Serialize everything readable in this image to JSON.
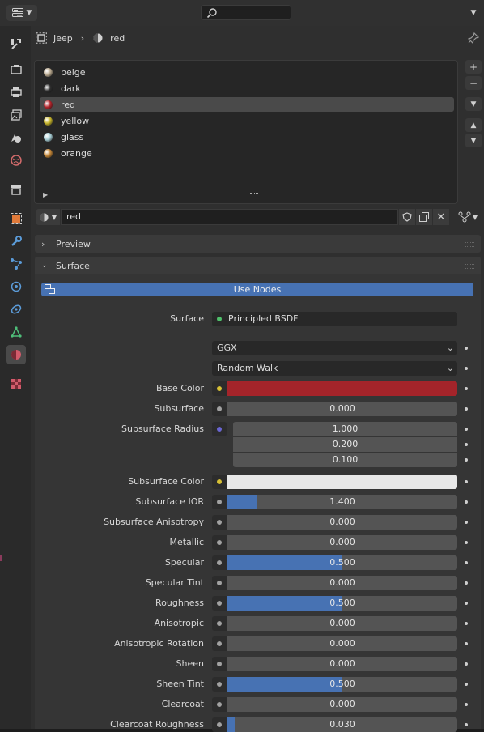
{
  "header": {
    "editor_icon": "properties-editor-icon",
    "search_placeholder": ""
  },
  "tabs": [
    {
      "name": "tool-tab",
      "icon": "tool-icon"
    },
    {
      "name": "render-tab",
      "icon": "camera-back-icon"
    },
    {
      "name": "output-tab",
      "icon": "printer-icon"
    },
    {
      "name": "view-layer-tab",
      "icon": "image-stack-icon"
    },
    {
      "name": "scene-tab",
      "icon": "scene-icon"
    },
    {
      "name": "world-tab",
      "icon": "world-icon"
    },
    {
      "name": "collection-tab",
      "icon": "collection-box-icon"
    },
    {
      "name": "object-tab",
      "icon": "object-square-icon"
    },
    {
      "name": "modifiers-tab",
      "icon": "wrench-icon"
    },
    {
      "name": "particles-tab",
      "icon": "particles-icon"
    },
    {
      "name": "physics-tab",
      "icon": "physics-orbit-icon"
    },
    {
      "name": "constraints-tab",
      "icon": "constraint-icon"
    },
    {
      "name": "data-tab",
      "icon": "mesh-data-icon"
    },
    {
      "name": "material-tab",
      "icon": "material-sphere-icon"
    },
    {
      "name": "texture-tab",
      "icon": "checker-texture-icon"
    }
  ],
  "breadcrumb": {
    "object": "Jeep",
    "material": "red"
  },
  "materials": [
    {
      "name": "beige",
      "color": "#b9a98f"
    },
    {
      "name": "dark",
      "color": "#2e2e2e"
    },
    {
      "name": "red",
      "color": "#b3242b"
    },
    {
      "name": "yellow",
      "color": "#c7b52a"
    },
    {
      "name": "glass",
      "color": "#a8cfd6"
    },
    {
      "name": "orange",
      "color": "#c48637"
    }
  ],
  "active_material": "red",
  "slot": {
    "name": "red"
  },
  "sections": {
    "preview": "Preview",
    "surface": "Surface"
  },
  "use_nodes": "Use Nodes",
  "surface_shader": {
    "label": "Surface",
    "value": "Principled BSDF"
  },
  "distribution": "GGX",
  "subsurface_method": "Random Walk",
  "properties": [
    {
      "label": "Base Color",
      "kind": "color",
      "color": "#a4242a",
      "socket": "#d8c135"
    },
    {
      "label": "Subsurface",
      "kind": "float",
      "value": "0.000",
      "fraction": 0
    },
    {
      "label": "Subsurface Radius",
      "kind": "vector",
      "values": [
        "1.000",
        "0.200",
        "0.100"
      ],
      "socket": "#6a66d3"
    },
    {
      "label": "Subsurface Color",
      "kind": "color",
      "color": "#e8e8e8",
      "socket": "#d8c135"
    },
    {
      "label": "Subsurface IOR",
      "kind": "float",
      "value": "1.400",
      "fraction": 0.13
    },
    {
      "label": "Subsurface Anisotropy",
      "kind": "float",
      "value": "0.000",
      "fraction": 0
    },
    {
      "label": "Metallic",
      "kind": "float",
      "value": "0.000",
      "fraction": 0
    },
    {
      "label": "Specular",
      "kind": "float",
      "value": "0.500",
      "fraction": 0.5
    },
    {
      "label": "Specular Tint",
      "kind": "float",
      "value": "0.000",
      "fraction": 0
    },
    {
      "label": "Roughness",
      "kind": "float",
      "value": "0.500",
      "fraction": 0.5
    },
    {
      "label": "Anisotropic",
      "kind": "float",
      "value": "0.000",
      "fraction": 0
    },
    {
      "label": "Anisotropic Rotation",
      "kind": "float",
      "value": "0.000",
      "fraction": 0
    },
    {
      "label": "Sheen",
      "kind": "float",
      "value": "0.000",
      "fraction": 0
    },
    {
      "label": "Sheen Tint",
      "kind": "float",
      "value": "0.500",
      "fraction": 0.5
    },
    {
      "label": "Clearcoat",
      "kind": "float",
      "value": "0.000",
      "fraction": 0
    },
    {
      "label": "Clearcoat Roughness",
      "kind": "float",
      "value": "0.030",
      "fraction": 0.03
    }
  ]
}
